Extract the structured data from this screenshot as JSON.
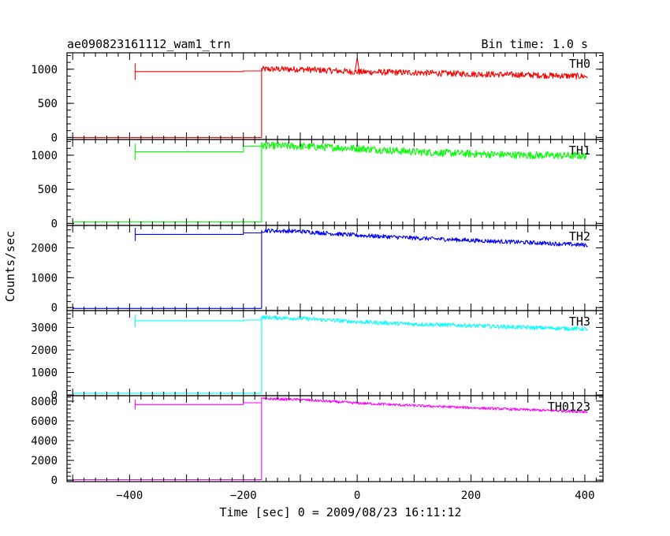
{
  "header": {
    "title": "ae090823161112_wam1_trn",
    "bin_time": "Bin time: 1.0 s"
  },
  "axes": {
    "xlabel": "Time [sec] 0 = 2009/08/23 16:11:12",
    "ylabel": "Counts/sec"
  },
  "chart_data": {
    "type": "line",
    "title": "ae090823161112_wam1_trn",
    "subtitle": "Bin time: 1.0 s",
    "xlabel": "Time [sec] 0 = 2009/08/23 16:11:12",
    "ylabel": "Counts/sec",
    "xlim": [
      -510,
      432
    ],
    "x_ticks": [
      -400,
      -200,
      0,
      200,
      400
    ],
    "x_tick_labels": [
      "−400",
      "−200",
      "0",
      "200",
      "400"
    ],
    "grid": false,
    "panels": [
      {
        "name": "TH0",
        "color": "#ff0000",
        "ylim": [
          -30,
          1240
        ],
        "yticks": [
          0,
          500,
          1000
        ],
        "ytick_labels": [
          "0",
          "500",
          "1000"
        ],
        "pre_start": -390,
        "pre_level": 965,
        "step_time": -200,
        "step_level": 975,
        "rise_time": -168,
        "baseline": 0,
        "spike_amp": 120,
        "x": [
          -168,
          -100,
          0,
          100,
          200,
          300,
          405
        ],
        "y": [
          1000,
          1000,
          960,
          950,
          930,
          915,
          895
        ],
        "noise": 45,
        "extra_spike": {
          "x": 0,
          "y": 1160
        }
      },
      {
        "name": "TH1",
        "color": "#00ff00",
        "ylim": [
          -30,
          1230
        ],
        "yticks": [
          0,
          500,
          1000
        ],
        "ytick_labels": [
          "0",
          "500",
          "1000"
        ],
        "pre_start": -390,
        "pre_level": 1050,
        "step_time": -200,
        "step_level": 1130,
        "rise_time": -168,
        "baseline": 20,
        "spike_amp": 120,
        "x": [
          -168,
          -100,
          0,
          100,
          200,
          300,
          405
        ],
        "y": [
          1140,
          1130,
          1100,
          1050,
          1020,
          1000,
          990
        ],
        "noise": 55
      },
      {
        "name": "TH2",
        "color": "#0000ff",
        "ylim": [
          -100,
          2750
        ],
        "yticks": [
          0,
          1000,
          2000
        ],
        "ytick_labels": [
          "0",
          "1000",
          "2000"
        ],
        "pre_start": -390,
        "pre_level": 2450,
        "step_time": -200,
        "step_level": 2500,
        "rise_time": -168,
        "baseline": -30,
        "spike_amp": 220,
        "x": [
          -168,
          -100,
          0,
          100,
          200,
          300,
          405
        ],
        "y": [
          2580,
          2550,
          2420,
          2330,
          2250,
          2180,
          2090
        ],
        "noise": 70
      },
      {
        "name": "TH3",
        "color": "#00ffff",
        "ylim": [
          -30,
          3750
        ],
        "yticks": [
          0,
          1000,
          2000,
          3000
        ],
        "ytick_labels": [
          "0",
          "1000",
          "2000",
          "3000"
        ],
        "pre_start": -390,
        "pre_level": 3300,
        "step_time": -200,
        "step_level": 3330,
        "rise_time": -168,
        "baseline": 80,
        "spike_amp": 280,
        "x": [
          -168,
          -100,
          0,
          100,
          200,
          300,
          405
        ],
        "y": [
          3450,
          3400,
          3250,
          3150,
          3080,
          3000,
          2930
        ],
        "noise": 90
      },
      {
        "name": "TH0123",
        "color": "#ff00ff",
        "ylim": [
          -150,
          8550
        ],
        "yticks": [
          0,
          2000,
          4000,
          6000,
          8000
        ],
        "ytick_labels": [
          "0",
          "2000",
          "4000",
          "6000",
          "8000"
        ],
        "pre_start": -390,
        "pre_level": 7650,
        "step_time": -200,
        "step_level": 7830,
        "rise_time": -168,
        "baseline": 50,
        "spike_amp": 500,
        "x": [
          -168,
          -100,
          0,
          100,
          200,
          300,
          405
        ],
        "y": [
          8250,
          8150,
          7800,
          7550,
          7330,
          7120,
          6920
        ],
        "noise": 130
      }
    ]
  }
}
